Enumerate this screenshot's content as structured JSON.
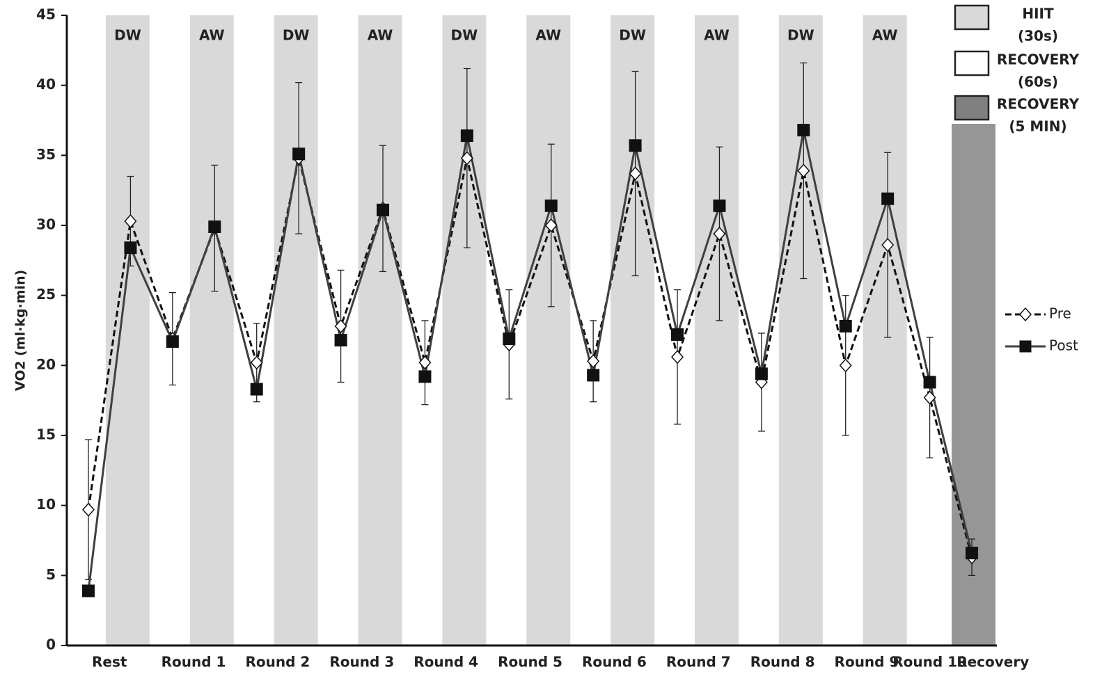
{
  "chart_data": {
    "type": "line",
    "y_label": "VO2 (ml·kg·min)",
    "categories": [
      "Rest",
      null,
      "Round 1",
      null,
      "Round 2",
      null,
      "Round 3",
      null,
      "Round 4",
      null,
      "Round 5",
      null,
      "Round 6",
      null,
      "Round 7",
      null,
      "Round 8",
      null,
      "Round 9",
      null,
      "Round 10",
      "Recovery"
    ],
    "phases": [
      "DW",
      "AW",
      "DW",
      "AW",
      "DW",
      "AW",
      "DW",
      "AW",
      "DW",
      "AW"
    ],
    "phase_color": "#d9d9d9",
    "recovery_color": "#969696",
    "phase_legend": [
      {
        "lines": [
          "HIIT",
          "(30s)"
        ],
        "color": "#d9d9d9"
      },
      {
        "lines": [
          "RECOVERY",
          "(60s)"
        ],
        "color": "#ffffff"
      },
      {
        "lines": [
          "RECOVERY",
          "(5 MIN)"
        ],
        "color": "#808080"
      }
    ],
    "series": [
      {
        "name": "Pre",
        "color": "#111111",
        "dashed": true,
        "marker": "diamond",
        "values": [
          9.7,
          30.3,
          21.9,
          29.8,
          20.2,
          34.8,
          22.8,
          31.2,
          20.2,
          34.8,
          21.5,
          30.0,
          20.3,
          33.7,
          20.6,
          29.4,
          18.8,
          33.9,
          20.0,
          28.6,
          17.7,
          6.3
        ],
        "errors": [
          5.0,
          3.2,
          3.3,
          4.5,
          2.8,
          5.4,
          4.0,
          4.5,
          3.0,
          6.4,
          3.9,
          5.8,
          2.9,
          7.3,
          4.8,
          6.2,
          3.5,
          7.7,
          5.0,
          6.6,
          4.3,
          1.3
        ]
      },
      {
        "name": "Post",
        "color": "#404040",
        "dashed": false,
        "marker": "square",
        "values": [
          3.9,
          28.4,
          21.7,
          29.9,
          18.3,
          35.1,
          21.8,
          31.1,
          19.2,
          36.4,
          21.9,
          31.4,
          19.3,
          35.7,
          22.2,
          31.4,
          19.4,
          36.8,
          22.8,
          31.9,
          18.8,
          6.6
        ]
      }
    ],
    "ylim": [
      0,
      45
    ],
    "yticks": [
      0,
      5,
      10,
      15,
      20,
      25,
      30,
      35,
      40,
      45
    ],
    "grid": false
  }
}
